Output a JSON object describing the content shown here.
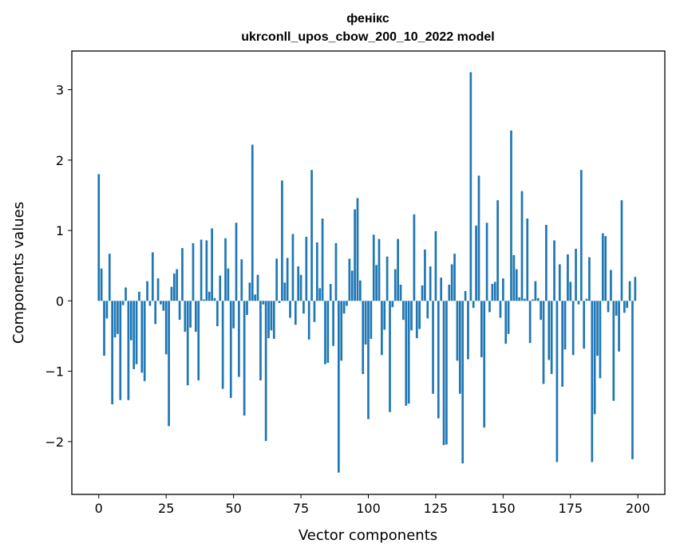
{
  "chart_data": {
    "type": "bar",
    "title_line1": "фенікс",
    "title_line2": "ukrconll_upos_cbow_200_10_2022 model",
    "xlabel": "Vector components",
    "ylabel": "Components values",
    "bar_color": "#1f77b4",
    "xlim": [
      -10,
      210
    ],
    "ylim": [
      -2.75,
      3.55
    ],
    "x_ticks": [
      0,
      25,
      50,
      75,
      100,
      125,
      150,
      175,
      200
    ],
    "y_ticks": [
      -2,
      -1,
      0,
      1,
      2,
      3
    ],
    "y_tick_labels": [
      "−2",
      "−1",
      "0",
      "1",
      "2",
      "3"
    ],
    "x": [
      0,
      1,
      2,
      3,
      4,
      5,
      6,
      7,
      8,
      9,
      10,
      11,
      12,
      13,
      14,
      15,
      16,
      17,
      18,
      19,
      20,
      21,
      22,
      23,
      24,
      25,
      26,
      27,
      28,
      29,
      30,
      31,
      32,
      33,
      34,
      35,
      36,
      37,
      38,
      39,
      40,
      41,
      42,
      43,
      44,
      45,
      46,
      47,
      48,
      49,
      50,
      51,
      52,
      53,
      54,
      55,
      56,
      57,
      58,
      59,
      60,
      61,
      62,
      63,
      64,
      65,
      66,
      67,
      68,
      69,
      70,
      71,
      72,
      73,
      74,
      75,
      76,
      77,
      78,
      79,
      80,
      81,
      82,
      83,
      84,
      85,
      86,
      87,
      88,
      89,
      90,
      91,
      92,
      93,
      94,
      95,
      96,
      97,
      98,
      99,
      100,
      101,
      102,
      103,
      104,
      105,
      106,
      107,
      108,
      109,
      110,
      111,
      112,
      113,
      114,
      115,
      116,
      117,
      118,
      119,
      120,
      121,
      122,
      123,
      124,
      125,
      126,
      127,
      128,
      129,
      130,
      131,
      132,
      133,
      134,
      135,
      136,
      137,
      138,
      139,
      140,
      141,
      142,
      143,
      144,
      145,
      146,
      147,
      148,
      149,
      150,
      151,
      152,
      153,
      154,
      155,
      156,
      157,
      158,
      159,
      160,
      161,
      162,
      163,
      164,
      165,
      166,
      167,
      168,
      169,
      170,
      171,
      172,
      173,
      174,
      175,
      176,
      177,
      178,
      179,
      180,
      181,
      182,
      183,
      184,
      185,
      186,
      187,
      188,
      189,
      190,
      191,
      192,
      193,
      194,
      195,
      196,
      197,
      198,
      199
    ],
    "values": [
      1.8,
      0.46,
      -0.78,
      -0.25,
      0.67,
      -1.47,
      -0.52,
      -0.47,
      -1.41,
      -0.06,
      0.19,
      -1.41,
      -0.56,
      -0.97,
      -0.9,
      0.13,
      -1.02,
      -1.14,
      0.28,
      -0.07,
      0.69,
      -0.33,
      0.32,
      -0.05,
      -0.14,
      -0.76,
      -1.78,
      0.2,
      0.39,
      0.45,
      -0.27,
      0.75,
      -0.44,
      -1.2,
      -0.38,
      0.82,
      -0.44,
      -1.13,
      0.87,
      0.02,
      0.86,
      0.13,
      1.03,
      0.04,
      -0.36,
      0.36,
      -1.25,
      0.89,
      0.46,
      -1.38,
      -0.39,
      1.11,
      -1.08,
      0.59,
      -1.63,
      -0.2,
      0.26,
      2.22,
      0.09,
      0.37,
      -1.13,
      -0.05,
      -1.99,
      -0.53,
      -0.42,
      -0.54,
      0.6,
      -0.03,
      1.71,
      0.26,
      0.61,
      -0.24,
      0.95,
      -0.34,
      0.49,
      0.37,
      -0.18,
      0.91,
      -0.55,
      1.86,
      -0.3,
      0.83,
      0.18,
      1.17,
      -0.9,
      -0.88,
      0.24,
      -0.64,
      0.82,
      -2.44,
      -0.85,
      -0.18,
      -0.07,
      0.6,
      0.43,
      1.3,
      1.46,
      0.29,
      -1.04,
      -0.62,
      -1.68,
      -0.54,
      0.94,
      0.51,
      0.88,
      -0.77,
      -0.41,
      0.63,
      -1.58,
      -0.09,
      0.45,
      0.88,
      0.23,
      -0.27,
      -1.49,
      -1.46,
      -0.42,
      1.23,
      -0.53,
      -0.4,
      0.22,
      0.73,
      -0.25,
      0.49,
      -1.32,
      0.99,
      -1.67,
      0.33,
      -2.05,
      -2.04,
      0.23,
      0.52,
      0.67,
      -0.85,
      -1.32,
      -2.31,
      0.14,
      -0.83,
      3.25,
      -0.1,
      1.07,
      1.78,
      -0.8,
      -1.8,
      1.11,
      -0.16,
      0.24,
      0.27,
      1.43,
      -0.24,
      0.32,
      -0.61,
      -0.47,
      2.42,
      0.65,
      0.45,
      0.05,
      1.56,
      0.03,
      1.17,
      -0.6,
      0.02,
      0.28,
      0.04,
      -0.27,
      -1.18,
      1.08,
      -0.84,
      -1.04,
      0.86,
      -2.29,
      0.52,
      -1.22,
      -0.69,
      0.66,
      0.27,
      -0.77,
      0.74,
      -0.05,
      1.86,
      -0.68,
      0.03,
      0.62,
      -2.29,
      -1.61,
      -0.78,
      -1.1,
      0.96,
      0.92,
      -0.16,
      0.44,
      -1.42,
      -0.21,
      -0.72,
      1.43,
      -0.17,
      -0.1,
      0.28,
      -2.25,
      0.34
    ]
  }
}
